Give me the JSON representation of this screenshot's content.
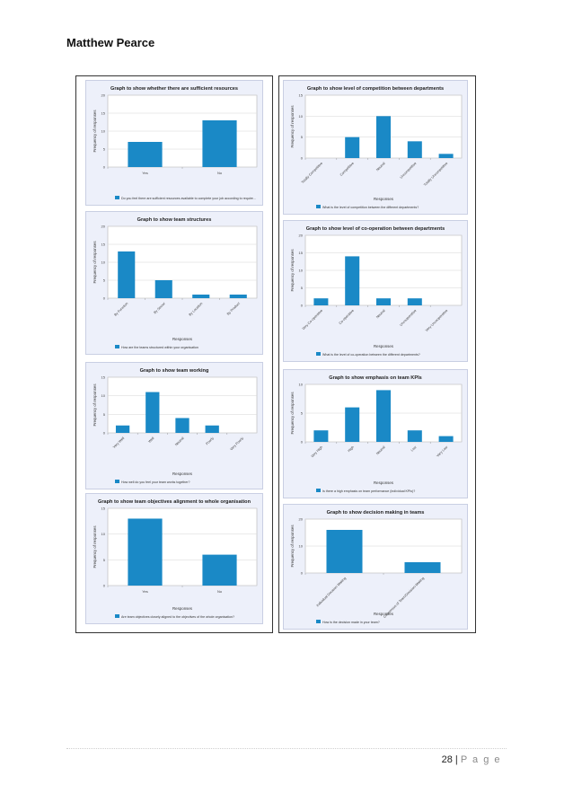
{
  "header": {
    "author": "Matthew Pearce"
  },
  "footer": {
    "page_number": "28",
    "separator": "|",
    "page_label": "P a g e"
  },
  "colors": {
    "bar": "#1a89c6",
    "panel_bg": "#edf0fa"
  },
  "chart_data": [
    {
      "type": "bar",
      "title": "Graph to show whether there are sufficient resources",
      "xlabel": "",
      "ylabel": "Frequency of responses",
      "categories": [
        "Yes",
        "No"
      ],
      "values": [
        7,
        13
      ],
      "ylim": [
        0,
        20
      ],
      "yticks": [
        0,
        5,
        10,
        15,
        20
      ],
      "rotated_labels": false,
      "legend": "Do you feel there are sufficient resources available to complete your job according to require..."
    },
    {
      "type": "bar",
      "title": "Graph to show level of competition between departments",
      "xlabel": "Responses",
      "ylabel": "Frequency of responses",
      "categories": [
        "Totally Competitive",
        "Competitive",
        "Neutral",
        "Uncompetitive",
        "Totally Uncompetitive"
      ],
      "values": [
        0,
        5,
        10,
        4,
        1
      ],
      "ylim": [
        0,
        15
      ],
      "yticks": [
        0,
        5,
        10,
        15
      ],
      "rotated_labels": true,
      "legend": "What is the level of competition between the different departments?"
    },
    {
      "type": "bar",
      "title": "Graph to show team structures",
      "xlabel": "Responses",
      "ylabel": "Frequency of responses",
      "categories": [
        "By Function",
        "By Sector",
        "By Location",
        "By Product"
      ],
      "values": [
        13,
        5,
        1,
        1
      ],
      "ylim": [
        0,
        20
      ],
      "yticks": [
        0,
        5,
        10,
        15,
        20
      ],
      "rotated_labels": true,
      "legend": "How are the teams structured within your organisation"
    },
    {
      "type": "bar",
      "title": "Graph to show level of co-operation between departments",
      "xlabel": "Responses",
      "ylabel": "Frequency of responses",
      "categories": [
        "Very Co-operative",
        "Co-operative",
        "Neutral",
        "Uncooperative",
        "Very Uncooperative"
      ],
      "values": [
        2,
        14,
        2,
        2,
        0
      ],
      "ylim": [
        0,
        20
      ],
      "yticks": [
        0,
        5,
        10,
        15,
        20
      ],
      "rotated_labels": true,
      "legend": "What is the level of co-operation between the different departments?"
    },
    {
      "type": "bar",
      "title": "Graph to show team working",
      "xlabel": "Responses",
      "ylabel": "Frequency of responses",
      "categories": [
        "Very Well",
        "Well",
        "Neutral",
        "Poorly",
        "Very Poorly"
      ],
      "values": [
        2,
        11,
        4,
        2,
        0
      ],
      "ylim": [
        0,
        15
      ],
      "yticks": [
        0,
        5,
        10,
        15
      ],
      "rotated_labels": true,
      "legend": "How well do you feel your team works together?"
    },
    {
      "type": "bar",
      "title": "Graph to show emphasis on team KPIs",
      "xlabel": "Responses",
      "ylabel": "Frequency of responses",
      "categories": [
        "Very High",
        "High",
        "Neutral",
        "Low",
        "Very Low"
      ],
      "values": [
        2,
        6,
        9,
        2,
        1
      ],
      "ylim": [
        0,
        10
      ],
      "yticks": [
        0,
        5,
        10
      ],
      "rotated_labels": true,
      "legend": "Is there a high emphasis on team performance (individual KPIs)?"
    },
    {
      "type": "bar",
      "title": "Graph to show team objectives alignment to whole organisation",
      "xlabel": "Responses",
      "ylabel": "Frequency of responses",
      "categories": [
        "Yes",
        "No"
      ],
      "values": [
        13,
        6
      ],
      "ylim": [
        0,
        15
      ],
      "yticks": [
        0,
        5,
        10,
        15
      ],
      "rotated_labels": false,
      "legend": "Are team objectives closely aligned to the objectives of the whole organisation?"
    },
    {
      "type": "bar",
      "title": "Graph to show decision making in teams",
      "xlabel": "Responses",
      "ylabel": "Frequency of responses",
      "categories": [
        "Individual Decision Making",
        "Consensus of Team/Decision-Making"
      ],
      "values": [
        16,
        4
      ],
      "ylim": [
        0,
        20
      ],
      "yticks": [
        0,
        10,
        20
      ],
      "rotated_labels": true,
      "legend": "How is the decision made in your team?"
    }
  ]
}
